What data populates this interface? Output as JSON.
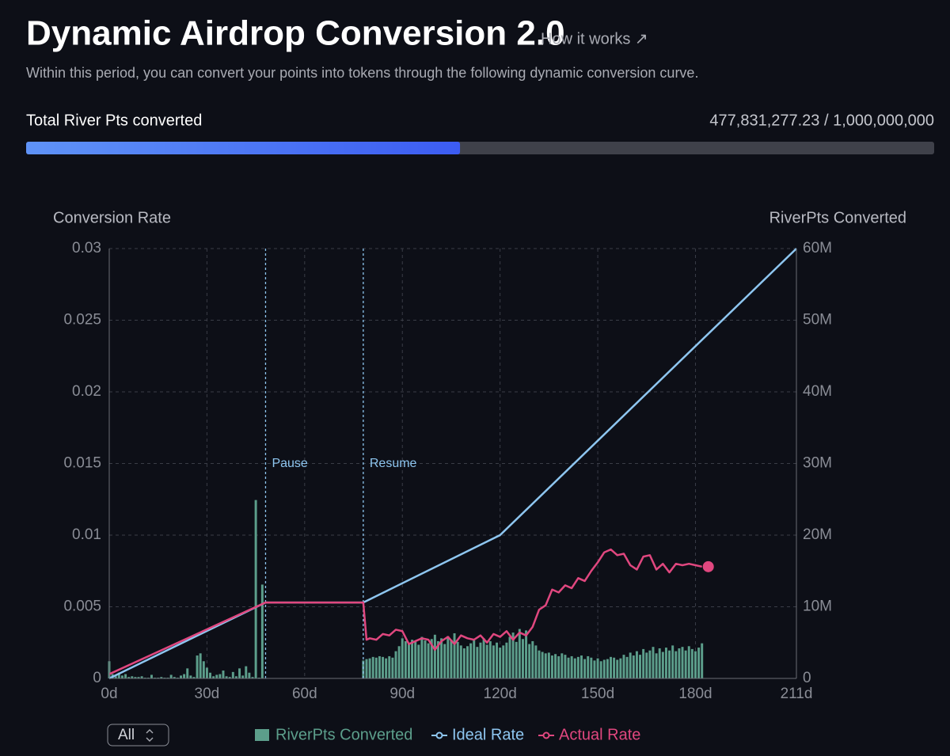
{
  "header": {
    "title": "Dynamic Airdrop Conversion 2.0",
    "link": "How it works ↗",
    "subtitle": "Within this period, you can convert your points into tokens through the following dynamic conversion curve."
  },
  "progress": {
    "label": "Total River Pts converted",
    "text": "477,831,277.23 / 1,000,000,000",
    "converted": 477831277.23,
    "total": 1000000000
  },
  "filter": "All",
  "chart_data": {
    "type": "combo",
    "ylabel": "Conversion Rate",
    "y2label": "RiverPts Converted",
    "xlim": [
      0,
      211
    ],
    "xticks": [
      {
        "value": 0,
        "label": "0d"
      },
      {
        "value": 30,
        "label": "30d"
      },
      {
        "value": 60,
        "label": "60d"
      },
      {
        "value": 90,
        "label": "90d"
      },
      {
        "value": 120,
        "label": "120d"
      },
      {
        "value": 150,
        "label": "150d"
      },
      {
        "value": 180,
        "label": "180d"
      },
      {
        "value": 211,
        "label": "211d"
      }
    ],
    "ylim": [
      0,
      0.03
    ],
    "yticks": [
      0,
      0.005,
      0.01,
      0.015,
      0.02,
      0.025,
      0.03
    ],
    "y2lim": [
      0,
      60
    ],
    "y2ticks": [
      0,
      {
        "value": 10,
        "label": "10M"
      },
      {
        "value": 20,
        "label": "20M"
      },
      {
        "value": 30,
        "label": "30M"
      },
      {
        "value": 40,
        "label": "40M"
      },
      {
        "value": 50,
        "label": "50M"
      },
      {
        "value": 60,
        "label": "60M"
      }
    ],
    "grid": true,
    "annotations": [
      {
        "label": "Pause",
        "x": 48
      },
      {
        "label": "Resume",
        "x": 78
      }
    ],
    "series": [
      {
        "name": "RiverPts Converted",
        "type": "bar",
        "axis": "y2",
        "color": "#5c9e8b",
        "x": [
          0,
          1,
          2,
          3,
          4,
          5,
          6,
          7,
          8,
          9,
          10,
          11,
          12,
          13,
          14,
          15,
          16,
          17,
          18,
          19,
          20,
          21,
          22,
          23,
          24,
          25,
          26,
          27,
          28,
          29,
          30,
          31,
          32,
          33,
          34,
          35,
          36,
          37,
          38,
          39,
          40,
          41,
          42,
          43,
          44,
          45,
          46,
          47,
          78,
          79,
          80,
          81,
          82,
          83,
          84,
          85,
          86,
          87,
          88,
          89,
          90,
          91,
          92,
          93,
          94,
          95,
          96,
          97,
          98,
          99,
          100,
          101,
          102,
          103,
          104,
          105,
          106,
          107,
          108,
          109,
          110,
          111,
          112,
          113,
          114,
          115,
          116,
          117,
          118,
          119,
          120,
          121,
          122,
          123,
          124,
          125,
          126,
          127,
          128,
          129,
          130,
          131,
          132,
          133,
          134,
          135,
          136,
          137,
          138,
          139,
          140,
          141,
          142,
          143,
          144,
          145,
          146,
          147,
          148,
          149,
          150,
          151,
          152,
          153,
          154,
          155,
          156,
          157,
          158,
          159,
          160,
          161,
          162,
          163,
          164,
          165,
          166,
          167,
          168,
          169,
          170,
          171,
          172,
          173,
          174,
          175,
          176,
          177,
          178,
          179,
          180,
          181,
          182
        ],
        "values": [
          2.4,
          0.6,
          0.3,
          0.8,
          0.4,
          0.6,
          0.2,
          0.3,
          0.2,
          0.2,
          0.3,
          0.1,
          0.1,
          0.5,
          0.1,
          0.1,
          0.2,
          0.1,
          0.1,
          0.5,
          0.2,
          0.1,
          0.4,
          0.6,
          1.4,
          0.4,
          0.2,
          3.2,
          3.5,
          2.4,
          1.5,
          0.8,
          0.3,
          0.5,
          0.6,
          1.1,
          0.3,
          0.2,
          0.9,
          0.3,
          1.4,
          0.4,
          1.7,
          0.8,
          0.2,
          24.9,
          0.1,
          13.1,
          2.5,
          2.7,
          2.8,
          3.0,
          2.9,
          3.1,
          3.0,
          2.8,
          3.1,
          2.9,
          3.8,
          4.5,
          5.6,
          5.2,
          4.9,
          5.4,
          5.1,
          4.7,
          5.8,
          5.3,
          4.9,
          5.5,
          6.1,
          5.2,
          5.6,
          4.8,
          5.9,
          5.4,
          6.3,
          5.1,
          4.6,
          4.2,
          4.5,
          4.9,
          5.3,
          4.4,
          5.0,
          5.6,
          4.7,
          5.2,
          4.6,
          5.0,
          4.3,
          4.6,
          5.0,
          5.8,
          6.4,
          5.1,
          6.9,
          5.5,
          6.7,
          4.8,
          5.2,
          4.6,
          3.9,
          3.7,
          3.5,
          3.6,
          3.2,
          3.4,
          3.1,
          3.5,
          3.3,
          2.9,
          3.1,
          2.8,
          3.0,
          3.2,
          2.7,
          3.1,
          2.9,
          2.5,
          2.8,
          2.4,
          2.6,
          2.7,
          3.0,
          2.9,
          2.6,
          2.8,
          3.3,
          3.0,
          3.6,
          3.2,
          3.8,
          3.3,
          4.1,
          3.6,
          3.9,
          4.4,
          3.5,
          4.2,
          3.7,
          4.3,
          3.9,
          4.6,
          3.8,
          4.2,
          4.4,
          3.9,
          4.5,
          4.1,
          3.8,
          4.3,
          4.9
        ]
      },
      {
        "name": "Ideal Rate",
        "type": "line",
        "color": "#8ec6f0",
        "x": [
          0,
          48,
          78,
          120,
          211
        ],
        "values": [
          0,
          0.0053,
          0.0053,
          0.01,
          0.03
        ]
      },
      {
        "name": "Actual Rate",
        "type": "line",
        "color": "#e0477f",
        "x": [
          0,
          48,
          78,
          79,
          80,
          82,
          84,
          86,
          88,
          90,
          92,
          94,
          96,
          98,
          100,
          102,
          104,
          106,
          108,
          110,
          112,
          114,
          116,
          118,
          120,
          122,
          124,
          126,
          128,
          130,
          132,
          134,
          136,
          138,
          140,
          142,
          144,
          146,
          148,
          150,
          152,
          154,
          156,
          158,
          160,
          162,
          164,
          166,
          168,
          170,
          172,
          174,
          176,
          178,
          180,
          182
        ],
        "values": [
          0.0003,
          0.0053,
          0.0053,
          0.0027,
          0.0028,
          0.0027,
          0.0031,
          0.003,
          0.0034,
          0.0033,
          0.0024,
          0.0026,
          0.0028,
          0.0027,
          0.002,
          0.0026,
          0.0029,
          0.0024,
          0.003,
          0.0028,
          0.0027,
          0.003,
          0.0025,
          0.0031,
          0.0029,
          0.0033,
          0.0027,
          0.0032,
          0.003,
          0.0036,
          0.0048,
          0.0051,
          0.0062,
          0.006,
          0.0065,
          0.0063,
          0.007,
          0.0068,
          0.0075,
          0.0081,
          0.0088,
          0.009,
          0.0086,
          0.0087,
          0.0079,
          0.0076,
          0.0085,
          0.0086,
          0.0076,
          0.008,
          0.0074,
          0.008,
          0.0079,
          0.008,
          0.0079,
          0.0078
        ]
      }
    ]
  }
}
